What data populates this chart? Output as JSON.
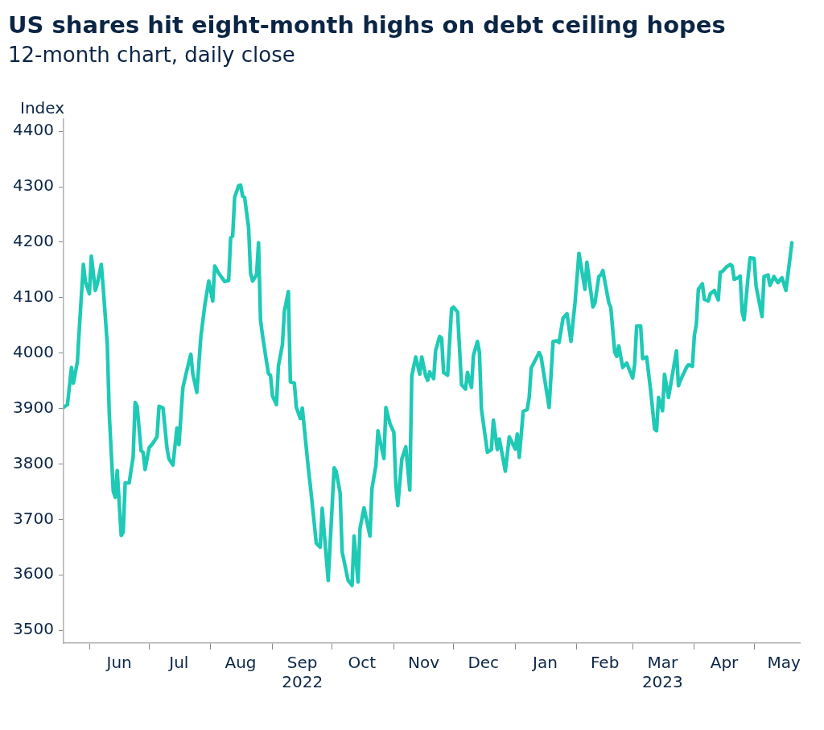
{
  "chart_data": {
    "type": "line",
    "title": "US shares hit eight-month highs on debt ceiling hopes",
    "subtitle": "12-month chart, daily close",
    "ylabel": "Index",
    "color": "#1ecab5",
    "grid": false,
    "legend": false,
    "marker": "none",
    "line_style": "solid",
    "xlim": [
      "2022-05-19",
      "2023-05-24"
    ],
    "ylim": [
      3477,
      4422
    ],
    "yticks": [
      3500,
      3600,
      3700,
      3800,
      3900,
      4000,
      4100,
      4200,
      4300,
      4400
    ],
    "xticks": [
      {
        "value": "2022-06-01",
        "label": null
      },
      {
        "value": "2022-07-01",
        "label": null
      },
      {
        "value": "2022-08-01",
        "label": null
      },
      {
        "value": "2022-09-01",
        "label": null
      },
      {
        "value": "2022-10-01",
        "label": null
      },
      {
        "value": "2022-11-01",
        "label": null
      },
      {
        "value": "2022-12-01",
        "label": null
      },
      {
        "value": "2023-01-01",
        "label": null
      },
      {
        "value": "2023-02-01",
        "label": null
      },
      {
        "value": "2023-03-01",
        "label": null
      },
      {
        "value": "2023-04-01",
        "label": null
      },
      {
        "value": "2023-05-01",
        "label": null
      },
      {
        "value": "2022-06-16",
        "label": "Jun"
      },
      {
        "value": "2022-07-16",
        "label": "Jul"
      },
      {
        "value": "2022-08-16",
        "label": "Aug"
      },
      {
        "value": "2022-09-16",
        "label": "Sep\n2022"
      },
      {
        "value": "2022-10-16",
        "label": "Oct"
      },
      {
        "value": "2022-11-16",
        "label": "Nov"
      },
      {
        "value": "2022-12-16",
        "label": "Dec"
      },
      {
        "value": "2023-01-16",
        "label": "Jan"
      },
      {
        "value": "2023-02-15",
        "label": "Feb"
      },
      {
        "value": "2023-03-16",
        "label": "Mar\n2023"
      },
      {
        "value": "2023-04-16",
        "label": "Apr"
      },
      {
        "value": "2023-05-16",
        "label": "May"
      }
    ],
    "x": [
      "2022-05-19",
      "2022-05-21",
      "2022-05-23",
      "2022-05-24",
      "2022-05-26",
      "2022-05-27",
      "2022-05-29",
      "2022-05-30",
      "2022-06-01",
      "2022-06-02",
      "2022-06-04",
      "2022-06-05",
      "2022-06-07",
      "2022-06-08",
      "2022-06-10",
      "2022-06-11",
      "2022-06-13",
      "2022-06-14",
      "2022-06-15",
      "2022-06-17",
      "2022-06-18",
      "2022-06-19",
      "2022-06-21",
      "2022-06-23",
      "2022-06-24",
      "2022-06-25",
      "2022-06-27",
      "2022-06-28",
      "2022-06-29",
      "2022-07-01",
      "2022-07-03",
      "2022-07-05",
      "2022-07-06",
      "2022-07-08",
      "2022-07-10",
      "2022-07-11",
      "2022-07-13",
      "2022-07-15",
      "2022-07-16",
      "2022-07-18",
      "2022-07-20",
      "2022-07-22",
      "2022-07-23",
      "2022-07-25",
      "2022-07-27",
      "2022-07-29",
      "2022-07-31",
      "2022-08-02",
      "2022-08-03",
      "2022-08-05",
      "2022-08-08",
      "2022-08-10",
      "2022-08-11",
      "2022-08-12",
      "2022-08-13",
      "2022-08-15",
      "2022-08-16",
      "2022-08-17",
      "2022-08-18",
      "2022-08-20",
      "2022-08-21",
      "2022-08-22",
      "2022-08-24",
      "2022-08-25",
      "2022-08-26",
      "2022-08-27",
      "2022-08-29",
      "2022-08-30",
      "2022-08-31",
      "2022-09-01",
      "2022-09-03",
      "2022-09-04",
      "2022-09-06",
      "2022-09-07",
      "2022-09-09",
      "2022-09-10",
      "2022-09-12",
      "2022-09-13",
      "2022-09-15",
      "2022-09-16",
      "2022-09-19",
      "2022-09-20",
      "2022-09-22",
      "2022-09-23",
      "2022-09-25",
      "2022-09-26",
      "2022-09-29",
      "2022-10-02",
      "2022-10-03",
      "2022-10-05",
      "2022-10-06",
      "2022-10-09",
      "2022-10-11",
      "2022-10-12",
      "2022-10-14",
      "2022-10-15",
      "2022-10-17",
      "2022-10-20",
      "2022-10-21",
      "2022-10-23",
      "2022-10-24",
      "2022-10-27",
      "2022-10-28",
      "2022-10-30",
      "2022-11-01",
      "2022-11-02",
      "2022-11-03",
      "2022-11-05",
      "2022-11-07",
      "2022-11-09",
      "2022-11-10",
      "2022-11-12",
      "2022-11-14",
      "2022-11-15",
      "2022-11-17",
      "2022-11-18",
      "2022-11-19",
      "2022-11-21",
      "2022-11-22",
      "2022-11-24",
      "2022-11-25",
      "2022-11-26",
      "2022-11-28",
      "2022-11-30",
      "2022-12-01",
      "2022-12-03",
      "2022-12-05",
      "2022-12-07",
      "2022-12-08",
      "2022-12-10",
      "2022-12-11",
      "2022-12-13",
      "2022-12-14",
      "2022-12-15",
      "2022-12-18",
      "2022-12-20",
      "2022-12-21",
      "2022-12-23",
      "2022-12-24",
      "2022-12-25",
      "2022-12-27",
      "2022-12-29",
      "2023-01-01",
      "2023-01-02",
      "2023-01-03",
      "2023-01-05",
      "2023-01-07",
      "2023-01-08",
      "2023-01-09",
      "2023-01-13",
      "2023-01-14",
      "2023-01-18",
      "2023-01-20",
      "2023-01-22",
      "2023-01-23",
      "2023-01-25",
      "2023-01-27",
      "2023-01-29",
      "2023-01-31",
      "2023-02-02",
      "2023-02-05",
      "2023-02-06",
      "2023-02-09",
      "2023-02-10",
      "2023-02-12",
      "2023-02-13",
      "2023-02-14",
      "2023-02-17",
      "2023-02-18",
      "2023-02-20",
      "2023-02-21",
      "2023-02-22",
      "2023-02-24",
      "2023-02-26",
      "2023-03-01",
      "2023-03-02",
      "2023-03-03",
      "2023-03-05",
      "2023-03-06",
      "2023-03-08",
      "2023-03-10",
      "2023-03-12",
      "2023-03-13",
      "2023-03-14",
      "2023-03-16",
      "2023-03-17",
      "2023-03-19",
      "2023-03-23",
      "2023-03-24",
      "2023-03-25",
      "2023-03-28",
      "2023-03-29",
      "2023-03-31",
      "2023-04-01",
      "2023-04-02",
      "2023-04-03",
      "2023-04-05",
      "2023-04-06",
      "2023-04-08",
      "2023-04-09",
      "2023-04-11",
      "2023-04-13",
      "2023-04-14",
      "2023-04-15",
      "2023-04-17",
      "2023-04-19",
      "2023-04-20",
      "2023-04-21",
      "2023-04-23",
      "2023-04-24",
      "2023-04-25",
      "2023-04-26",
      "2023-04-28",
      "2023-04-29",
      "2023-05-01",
      "2023-05-02",
      "2023-05-05",
      "2023-05-06",
      "2023-05-08",
      "2023-05-09",
      "2023-05-11",
      "2023-05-13",
      "2023-05-15",
      "2023-05-17",
      "2023-05-20"
    ],
    "values": [
      3902,
      3907,
      3974,
      3946,
      3985,
      4047,
      4160,
      4129,
      4107,
      4175,
      4113,
      4125,
      4160,
      4116,
      4016,
      3891,
      3751,
      3740,
      3788,
      3671,
      3677,
      3766,
      3766,
      3813,
      3911,
      3904,
      3824,
      3821,
      3790,
      3829,
      3838,
      3849,
      3904,
      3901,
      3829,
      3809,
      3798,
      3865,
      3835,
      3938,
      3969,
      3998,
      3962,
      3929,
      4029,
      4086,
      4130,
      4094,
      4157,
      4144,
      4129,
      4131,
      4208,
      4211,
      4281,
      4302,
      4303,
      4283,
      4281,
      4227,
      4144,
      4130,
      4141,
      4199,
      4060,
      4032,
      3985,
      3963,
      3960,
      3923,
      3907,
      3977,
      4015,
      4076,
      4111,
      3948,
      3946,
      3902,
      3882,
      3901,
      3793,
      3762,
      3693,
      3657,
      3650,
      3720,
      3590,
      3793,
      3787,
      3748,
      3642,
      3590,
      3581,
      3670,
      3587,
      3684,
      3721,
      3670,
      3756,
      3798,
      3860,
      3810,
      3902,
      3873,
      3857,
      3762,
      3725,
      3809,
      3831,
      3753,
      3959,
      3993,
      3962,
      3993,
      3959,
      3951,
      3966,
      3954,
      4005,
      4030,
      4027,
      3965,
      3960,
      4080,
      4083,
      4074,
      3943,
      3935,
      3965,
      3938,
      3996,
      4021,
      4001,
      3899,
      3821,
      3826,
      3879,
      3826,
      3845,
      3826,
      3787,
      3849,
      3827,
      3854,
      3812,
      3895,
      3898,
      3920,
      3973,
      4001,
      3993,
      3902,
      4021,
      4022,
      4019,
      4063,
      4071,
      4021,
      4090,
      4180,
      4115,
      4164,
      4083,
      4090,
      4138,
      4141,
      4149,
      4091,
      4082,
      4001,
      3994,
      4013,
      3974,
      3982,
      3955,
      3980,
      4049,
      4049,
      3990,
      3993,
      3934,
      3863,
      3860,
      3920,
      3896,
      3962,
      3920,
      4004,
      3941,
      3951,
      3974,
      3979,
      3976,
      4032,
      4052,
      4115,
      4125,
      4097,
      4094,
      4107,
      4113,
      4096,
      4146,
      4147,
      4155,
      4160,
      4157,
      4133,
      4136,
      4139,
      4074,
      4060,
      4138,
      4172,
      4171,
      4121,
      4066,
      4138,
      4141,
      4122,
      4138,
      4127,
      4136,
      4113,
      4199
    ]
  }
}
